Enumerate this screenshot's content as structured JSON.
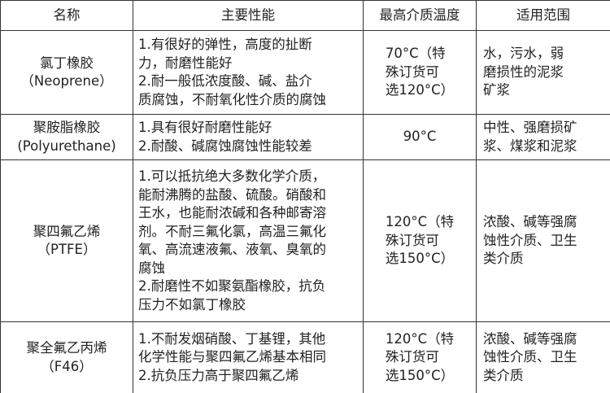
{
  "table": {
    "header": [
      "名称",
      "主要性能",
      "最高介质温度",
      "适用范围"
    ],
    "rows": [
      [
        [
          "氯丁橡胶",
          "（Neoprene）"
        ],
        [
          "1.有很好的弹性，高度的扯断",
          "力，耐磨性能好",
          "2.耐一般低浓度酸、碱、盐介",
          "质腐蚀，不耐氧化性介质的腐蚀"
        ],
        [
          "70°C（特",
          "殊订货可",
          "选120°C）"
        ],
        [
          "水，污水，弱",
          "磨损性的泥浆",
          "矿浆"
        ]
      ],
      [
        [
          "聚胺脂橡胶",
          "(Polyurethane)"
        ],
        [
          "1.具有很好耐磨性能好",
          "2.耐酸、碱腐蚀腐蚀性能较差"
        ],
        [
          "90°C"
        ],
        [
          "中性、强磨损矿",
          "浆、煤浆和泥浆"
        ]
      ],
      [
        [
          "聚四氟乙烯",
          "（PTFE）"
        ],
        [
          "1.可以抵抗绝大多数化学介质，",
          "能耐沸腾的盐酸、硫酸。硝酸和",
          "王水，也能耐浓碱和各种邮寄溶",
          "剂。不耐三氟化氯，高温三氟化",
          "氧、高流速液氟、液氧、臭氧的",
          "腐蚀",
          "2.耐磨性不如聚氨酯橡胶，抗负",
          "压力不如氯丁橡胶"
        ],
        [
          "120°C（特",
          "殊订货可",
          "选150°C）"
        ],
        [
          "浓酸、碱等强腐",
          "蚀性介质、卫生",
          "类介质"
        ]
      ],
      [
        [
          "聚全氟乙丙烯",
          "（F46）"
        ],
        [
          "1.不耐发烟硝酸、丁基锂，其他",
          "化学性能与聚四氟乙烯基本相同",
          "2.抗负压力高于聚四氟乙烯"
        ],
        [
          "120°C（特",
          "殊订货可",
          "选150°C）"
        ],
        [
          "浓酸、碱等强腐",
          "蚀性介质、卫生",
          "类介质"
        ]
      ]
    ]
  }
}
